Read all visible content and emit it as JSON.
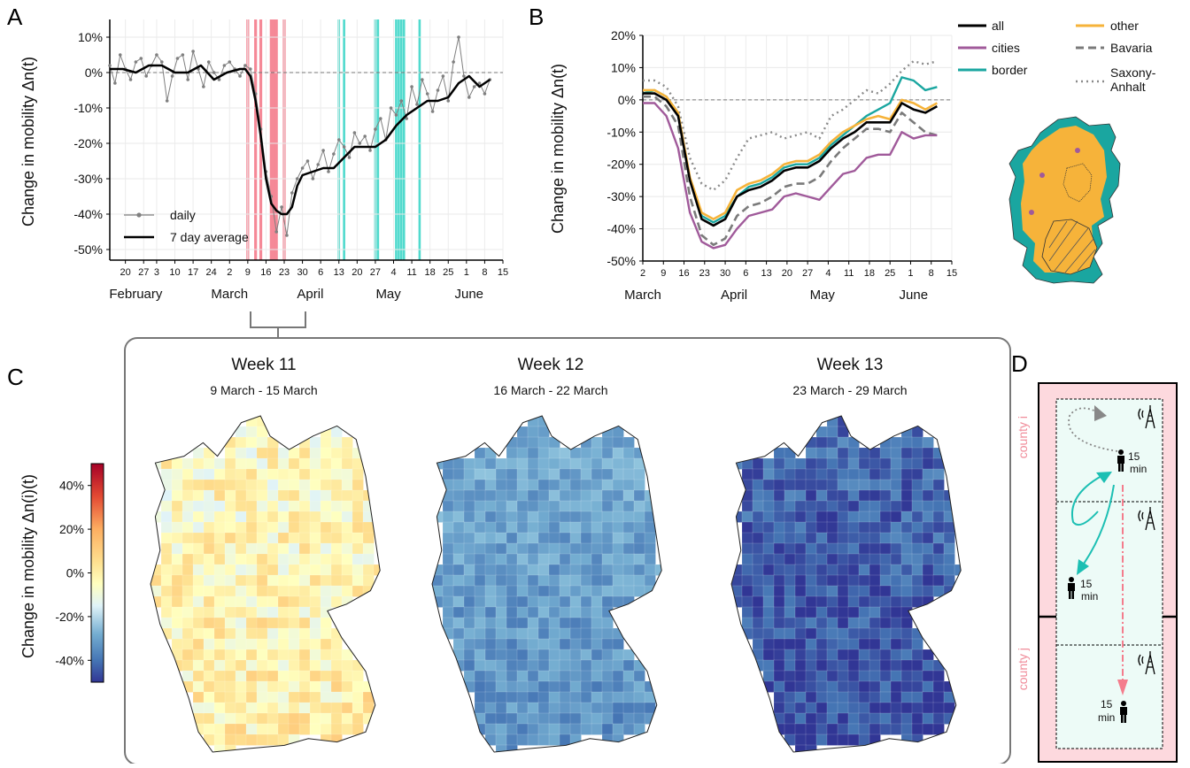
{
  "panels": {
    "a": "A",
    "b": "B",
    "c": "C",
    "d": "D"
  },
  "colors": {
    "all": "#000000",
    "cities": "#a05a9a",
    "border": "#1aa6a0",
    "other": "#f6b33a",
    "bavaria": "#7a7a7a",
    "saxony": "#8a8a8a",
    "daily": "#808080",
    "restriction": "#f47c8c",
    "relaxation": "#3dd6c8",
    "county_bg": "#fdd9de",
    "cell_bg": "#edfbf7",
    "arrow_teal": "#1cbfb3",
    "arrow_pink": "#f47c8c"
  },
  "chart_data": [
    {
      "type": "line",
      "id": "A",
      "ylabel": "Change in mobility Δn(t)",
      "ylim": [
        -53,
        15
      ],
      "yticks": [
        "10%",
        "0%",
        "-10%",
        "-20%",
        "-30%",
        "-40%",
        "-50%"
      ],
      "ytick_values": [
        10,
        0,
        -10,
        -20,
        -30,
        -40,
        -50
      ],
      "x_day_range": [
        0,
        130
      ],
      "xticks": [
        {
          "d": 6,
          "l": "20"
        },
        {
          "d": 13,
          "l": "27"
        },
        {
          "d": 18,
          "l": "3"
        },
        {
          "d": 25,
          "l": "10"
        },
        {
          "d": 32,
          "l": "17"
        },
        {
          "d": 39,
          "l": "24"
        },
        {
          "d": 46,
          "l": "2"
        },
        {
          "d": 53,
          "l": "9"
        },
        {
          "d": 60,
          "l": "16"
        },
        {
          "d": 67,
          "l": "23"
        },
        {
          "d": 74,
          "l": "30"
        },
        {
          "d": 81,
          "l": "6"
        },
        {
          "d": 88,
          "l": "13"
        },
        {
          "d": 95,
          "l": "20"
        },
        {
          "d": 102,
          "l": "27"
        },
        {
          "d": 109,
          "l": "4"
        },
        {
          "d": 116,
          "l": "11"
        },
        {
          "d": 123,
          "l": "18"
        },
        {
          "d": 130,
          "l": "25"
        },
        {
          "d": 137,
          "l": "1"
        },
        {
          "d": 144,
          "l": "8"
        },
        {
          "d": 151,
          "l": "15"
        }
      ],
      "months": [
        {
          "d": 10,
          "l": "February"
        },
        {
          "d": 46,
          "l": "March"
        },
        {
          "d": 77,
          "l": "April"
        },
        {
          "d": 107,
          "l": "May"
        },
        {
          "d": 138,
          "l": "June"
        }
      ],
      "restriction_days": [
        53,
        56,
        58,
        62,
        63,
        64,
        67
      ],
      "relaxation_days": [
        88,
        90,
        102,
        103,
        110,
        111,
        112,
        113,
        119
      ],
      "legend": [
        {
          "name": "daily"
        },
        {
          "name": "7 day average"
        }
      ],
      "series": [
        {
          "name": "7 day average",
          "x": [
            0,
            5,
            10,
            15,
            20,
            25,
            30,
            35,
            40,
            45,
            50,
            52,
            54,
            56,
            58,
            60,
            62,
            64,
            66,
            68,
            70,
            72,
            74,
            78,
            82,
            86,
            90,
            94,
            98,
            102,
            106,
            110,
            114,
            118,
            122,
            126,
            130,
            134,
            138,
            142,
            146
          ],
          "values": [
            1,
            1,
            0,
            2,
            2,
            0,
            0,
            2,
            -2,
            0,
            1,
            1,
            -1,
            -8,
            -18,
            -30,
            -37,
            -39,
            -40,
            -40,
            -38,
            -32,
            -29,
            -28,
            -27,
            -27,
            -24,
            -21,
            -21,
            -21,
            -19,
            -15,
            -12,
            -10,
            -8,
            -8,
            -7,
            -3,
            -1,
            -4,
            -2
          ]
        },
        {
          "name": "daily",
          "x": [
            0,
            2,
            4,
            6,
            8,
            10,
            12,
            14,
            16,
            18,
            20,
            22,
            24,
            26,
            28,
            30,
            32,
            34,
            36,
            38,
            40,
            42,
            44,
            46,
            48,
            50,
            52,
            54,
            56,
            58,
            60,
            62,
            64,
            66,
            68,
            70,
            72,
            74,
            76,
            78,
            80,
            82,
            84,
            86,
            88,
            90,
            92,
            94,
            96,
            98,
            100,
            102,
            104,
            106,
            108,
            110,
            112,
            114,
            116,
            118,
            120,
            122,
            124,
            126,
            128,
            130,
            132,
            134,
            136,
            138,
            140,
            142,
            144,
            146
          ],
          "values": [
            2,
            -3,
            5,
            1,
            -2,
            3,
            4,
            -1,
            2,
            5,
            3,
            -8,
            -1,
            4,
            5,
            -2,
            6,
            1,
            -4,
            3,
            0,
            -2,
            2,
            3,
            1,
            -1,
            2,
            1,
            -6,
            -16,
            -28,
            -35,
            -45,
            -38,
            -46,
            -34,
            -30,
            -27,
            -25,
            -30,
            -26,
            -22,
            -28,
            -23,
            -19,
            -21,
            -24,
            -17,
            -20,
            -18,
            -22,
            -16,
            -13,
            -19,
            -10,
            -12,
            -8,
            -13,
            -4,
            -9,
            -2,
            -6,
            -11,
            -5,
            -1,
            -8,
            3,
            10,
            -1,
            -7,
            -4,
            -3,
            -6,
            -2
          ]
        }
      ]
    },
    {
      "type": "line",
      "id": "B",
      "ylabel": "Change in mobility Δn(t)",
      "ylim": [
        -50,
        20
      ],
      "yticks": [
        "20%",
        "10%",
        "0%",
        "-10%",
        "-20%",
        "-30%",
        "-40%",
        "-50%"
      ],
      "ytick_values": [
        20,
        10,
        0,
        -10,
        -20,
        -30,
        -40,
        -50
      ],
      "x_day_range": [
        0,
        105
      ],
      "xticks": [
        {
          "d": 0,
          "l": "2"
        },
        {
          "d": 7,
          "l": "9"
        },
        {
          "d": 14,
          "l": "16"
        },
        {
          "d": 21,
          "l": "23"
        },
        {
          "d": 28,
          "l": "30"
        },
        {
          "d": 35,
          "l": "6"
        },
        {
          "d": 42,
          "l": "13"
        },
        {
          "d": 49,
          "l": "20"
        },
        {
          "d": 56,
          "l": "27"
        },
        {
          "d": 63,
          "l": "4"
        },
        {
          "d": 70,
          "l": "11"
        },
        {
          "d": 77,
          "l": "18"
        },
        {
          "d": 84,
          "l": "25"
        },
        {
          "d": 91,
          "l": "1"
        },
        {
          "d": 98,
          "l": "8"
        },
        {
          "d": 105,
          "l": "15"
        }
      ],
      "months": [
        {
          "d": 0,
          "l": "March"
        },
        {
          "d": 31,
          "l": "April"
        },
        {
          "d": 61,
          "l": "May"
        },
        {
          "d": 92,
          "l": "June"
        }
      ],
      "x": [
        0,
        4,
        8,
        12,
        16,
        20,
        24,
        28,
        32,
        36,
        40,
        44,
        48,
        52,
        56,
        60,
        64,
        68,
        72,
        76,
        80,
        84,
        88,
        92,
        96,
        100
      ],
      "series": [
        {
          "name": "all",
          "values": [
            2,
            2,
            0,
            -5,
            -25,
            -37,
            -39,
            -37,
            -30,
            -28,
            -27,
            -25,
            -22,
            -21,
            -21,
            -19,
            -15,
            -12,
            -10,
            -7,
            -7,
            -7,
            -1,
            -3,
            -4,
            -2
          ]
        },
        {
          "name": "cities",
          "values": [
            -1,
            -1,
            -5,
            -15,
            -35,
            -44,
            -46,
            -45,
            -40,
            -36,
            -35,
            -34,
            -30,
            -29,
            -30,
            -31,
            -27,
            -23,
            -22,
            -18,
            -17,
            -17,
            -10,
            -12,
            -11,
            -11
          ]
        },
        {
          "name": "border",
          "values": [
            2,
            3,
            1,
            -4,
            -25,
            -36,
            -38,
            -36,
            -30,
            -27,
            -26,
            -24,
            -21,
            -20,
            -20,
            -18,
            -14,
            -11,
            -8,
            -5,
            -3,
            -1,
            7,
            6,
            3,
            4
          ]
        },
        {
          "name": "other",
          "values": [
            3,
            3,
            1,
            -4,
            -24,
            -35,
            -37,
            -35,
            -28,
            -26,
            -25,
            -23,
            -20,
            -19,
            -19,
            -17,
            -13,
            -10,
            -8,
            -6,
            -5,
            -6,
            0,
            -1,
            -3,
            -1
          ]
        },
        {
          "name": "Bavaria",
          "values": [
            1,
            1,
            -2,
            -8,
            -30,
            -42,
            -45,
            -43,
            -36,
            -33,
            -32,
            -30,
            -27,
            -26,
            -26,
            -24,
            -19,
            -15,
            -12,
            -9,
            -9,
            -10,
            -4,
            -7,
            -10,
            -11
          ]
        },
        {
          "name": "Saxony-Anhalt",
          "values": [
            6,
            6,
            4,
            -2,
            -18,
            -26,
            -28,
            -25,
            -18,
            -12,
            -11,
            -10,
            -12,
            -11,
            -10,
            -12,
            -5,
            -3,
            0,
            3,
            2,
            5,
            9,
            12,
            11,
            12
          ]
        }
      ],
      "legend": [
        {
          "name": "all"
        },
        {
          "name": "other"
        },
        {
          "name": "cities"
        },
        {
          "name": "Bavaria"
        },
        {
          "name": "border"
        },
        {
          "name": "Saxony-Anhalt"
        }
      ]
    },
    {
      "type": "heatmap",
      "id": "C",
      "colorbar_label": "Change in mobility Δn(i)(t)",
      "colorbar_ticks": [
        "40%",
        "20%",
        "0%",
        "-20%",
        "-40%"
      ],
      "colorbar_values": [
        40,
        20,
        0,
        -20,
        -40
      ],
      "maps": [
        {
          "title": "Week 11",
          "subtitle": "9 March - 15 March",
          "mean": 3
        },
        {
          "title": "Week 12",
          "subtitle": "16 March - 22 March",
          "mean": -25
        },
        {
          "title": "Week 13",
          "subtitle": "23 March - 29 March",
          "mean": -40
        }
      ]
    }
  ],
  "legendB": {
    "saxony_line1": "Saxony-",
    "saxony_line2": "Anhalt"
  },
  "schematic": {
    "county_i": "county i",
    "county_j": "county j",
    "time_num": "15",
    "time_unit": "min"
  }
}
